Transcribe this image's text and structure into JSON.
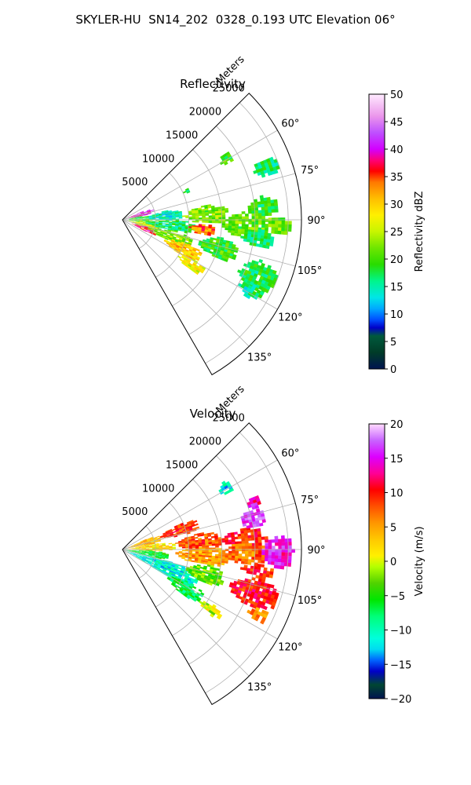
{
  "title": "SKYLER-HU  SN14_202  0328_0.193 UTC Elevation 06°",
  "range_axis_label": "Meters",
  "range_ticks": [
    "5000",
    "10000",
    "15000",
    "20000",
    "25000"
  ],
  "azimuth_ticks": [
    "60°",
    "75°",
    "90°",
    "105°",
    "120°",
    "135°"
  ],
  "colors": {
    "background": "#ffffff",
    "grid": "#b0b0b0",
    "axis": "#000000"
  },
  "chart_data": [
    {
      "type": "heatmap",
      "name": "reflectivity-ppi",
      "title": "Reflectivity",
      "projection": "polar",
      "azimuth_range_deg": [
        45,
        150
      ],
      "azimuth_ticks_deg": [
        60,
        75,
        90,
        105,
        120,
        135
      ],
      "range_max_m": 27000,
      "range_ticks_m": [
        5000,
        10000,
        15000,
        20000,
        25000
      ],
      "colorbar": {
        "label": "Reflectivity dBZ",
        "vmin": 0,
        "vmax": 50,
        "ticks": [
          0,
          5,
          10,
          15,
          20,
          25,
          30,
          35,
          40,
          45,
          50
        ],
        "tick_labels": [
          "0",
          "5",
          "10",
          "15",
          "20",
          "25",
          "30",
          "35",
          "40",
          "45",
          "50"
        ]
      },
      "echo_regions": [
        {
          "az": [
            67,
            79
          ],
          "r": [
            400,
            4500
          ],
          "value": 40
        },
        {
          "az": [
            79,
            86
          ],
          "r": [
            500,
            4000
          ],
          "value": 18
        },
        {
          "az": [
            86,
            96
          ],
          "r": [
            500,
            4500
          ],
          "value": 20
        },
        {
          "az": [
            96,
            108
          ],
          "r": [
            600,
            5500
          ],
          "value": 26
        },
        {
          "az": [
            106,
            116
          ],
          "r": [
            1500,
            5500
          ],
          "value": 37
        },
        {
          "az": [
            78,
            90
          ],
          "r": [
            3500,
            9000
          ],
          "value": 15
        },
        {
          "az": [
            90,
            102
          ],
          "r": [
            3500,
            11000
          ],
          "value": 17
        },
        {
          "az": [
            102,
            114
          ],
          "r": [
            4000,
            11000
          ],
          "value": 22
        },
        {
          "az": [
            110,
            120
          ],
          "r": [
            7000,
            13000
          ],
          "value": 30
        },
        {
          "az": [
            119,
            126
          ],
          "r": [
            10000,
            14500
          ],
          "value": 27
        },
        {
          "az": [
            80,
            92
          ],
          "r": [
            9000,
            16000
          ],
          "value": 22
        },
        {
          "az": [
            92,
            100
          ],
          "r": [
            10000,
            14000
          ],
          "value": 34
        },
        {
          "az": [
            86,
            98
          ],
          "r": [
            15000,
            22000
          ],
          "value": 21
        },
        {
          "az": [
            80,
            88
          ],
          "r": [
            19000,
            23500
          ],
          "value": 19
        },
        {
          "az": [
            88,
            95
          ],
          "r": [
            21500,
            25500
          ],
          "value": 22
        },
        {
          "az": [
            94,
            101
          ],
          "r": [
            18000,
            23000
          ],
          "value": 17
        },
        {
          "az": [
            100,
            112
          ],
          "r": [
            12000,
            18000
          ],
          "value": 19
        },
        {
          "az": [
            106,
            118
          ],
          "r": [
            19000,
            25000
          ],
          "value": 18
        },
        {
          "az": [
            116,
            121
          ],
          "r": [
            20000,
            24000
          ],
          "value": 16
        },
        {
          "az": [
            56,
            62
          ],
          "r": [
            17000,
            19000
          ],
          "value": 20
        },
        {
          "az": [
            66,
            73
          ],
          "r": [
            21000,
            25000
          ],
          "value": 17
        },
        {
          "az": [
            63,
            67
          ],
          "r": [
            10000,
            11000
          ],
          "value": 18
        }
      ]
    },
    {
      "type": "heatmap",
      "name": "velocity-ppi",
      "title": "Velocity",
      "projection": "polar",
      "azimuth_range_deg": [
        45,
        150
      ],
      "azimuth_ticks_deg": [
        60,
        75,
        90,
        105,
        120,
        135
      ],
      "range_max_m": 27000,
      "range_ticks_m": [
        5000,
        10000,
        15000,
        20000,
        25000
      ],
      "colorbar": {
        "label": "Velocity (m/s)",
        "vmin": -20,
        "vmax": 20,
        "ticks": [
          -20,
          -15,
          -10,
          -5,
          0,
          5,
          10,
          15,
          20
        ],
        "tick_labels": [
          "−20",
          "−15",
          "−10",
          "−5",
          "0",
          "5",
          "10",
          "15",
          "20"
        ]
      },
      "echo_regions": [
        {
          "az": [
            66,
            80
          ],
          "r": [
            400,
            6000
          ],
          "value": 4
        },
        {
          "az": [
            80,
            92
          ],
          "r": [
            500,
            8000
          ],
          "value": 2
        },
        {
          "az": [
            92,
            104
          ],
          "r": [
            500,
            7000
          ],
          "value": -6
        },
        {
          "az": [
            104,
            120
          ],
          "r": [
            800,
            12000
          ],
          "value": -11
        },
        {
          "az": [
            116,
            126
          ],
          "r": [
            8000,
            14000
          ],
          "value": -7
        },
        {
          "az": [
            66,
            76
          ],
          "r": [
            6000,
            12000
          ],
          "value": 9
        },
        {
          "az": [
            78,
            90
          ],
          "r": [
            8000,
            15000
          ],
          "value": 8
        },
        {
          "az": [
            88,
            100
          ],
          "r": [
            8000,
            16000
          ],
          "value": 5
        },
        {
          "az": [
            100,
            112
          ],
          "r": [
            10000,
            16000
          ],
          "value": -3
        },
        {
          "az": [
            80,
            88
          ],
          "r": [
            15000,
            22000
          ],
          "value": 10
        },
        {
          "az": [
            86,
            96
          ],
          "r": [
            15000,
            22000
          ],
          "value": 7
        },
        {
          "az": [
            85,
            96
          ],
          "r": [
            21000,
            26000
          ],
          "value": 15
        },
        {
          "az": [
            72,
            80
          ],
          "r": [
            18000,
            22000
          ],
          "value": 16
        },
        {
          "az": [
            96,
            101
          ],
          "r": [
            18000,
            23000
          ],
          "value": 9
        },
        {
          "az": [
            102,
            113
          ],
          "r": [
            17000,
            24500
          ],
          "value": 10
        },
        {
          "az": [
            112,
            118
          ],
          "r": [
            21000,
            24000
          ],
          "value": 6
        },
        {
          "az": [
            121,
            126
          ],
          "r": [
            14000,
            18000
          ],
          "value": 0
        },
        {
          "az": [
            56,
            62
          ],
          "r": [
            17000,
            19000
          ],
          "value": -11
        },
        {
          "az": [
            67,
            73
          ],
          "r": [
            20000,
            22000
          ],
          "value": 14
        }
      ]
    }
  ]
}
